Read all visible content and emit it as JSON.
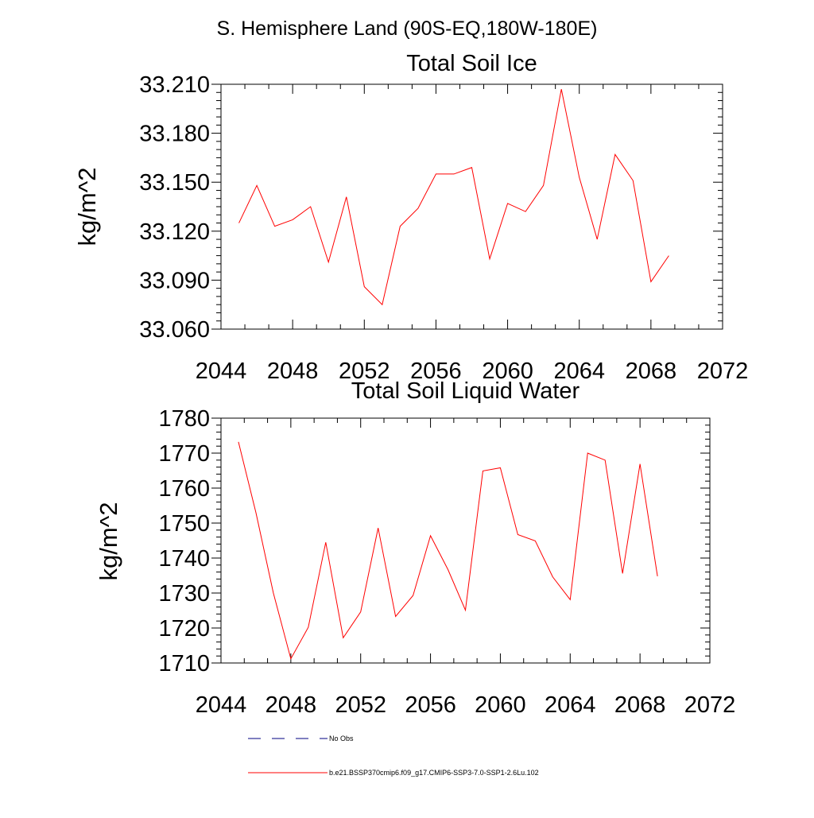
{
  "main_title": "S. Hemisphere Land (90S-EQ,180W-180E)",
  "colors": {
    "series": "#ff0000",
    "axes": "#000000",
    "obs": "#000080"
  },
  "legend": [
    {
      "label": "No Obs",
      "style": "dashed",
      "color": "#000080"
    },
    {
      "label": "b.e21.BSSP370cmip6.f09_g17.CMIP6-SSP3-7.0-SSP1-2.6Lu.102",
      "style": "solid",
      "color": "#ff0000"
    }
  ],
  "chart_data": [
    {
      "type": "line",
      "title": "Total Soil Ice",
      "xlabel": "",
      "ylabel": "kg/m^2",
      "xlim": [
        2044,
        2072
      ],
      "ylim": [
        33.06,
        33.21
      ],
      "xticks": [
        2044,
        2048,
        2052,
        2056,
        2060,
        2064,
        2068,
        2072
      ],
      "xtick_labels": [
        "2044",
        "2048",
        "2052",
        "2056",
        "2060",
        "2064",
        "2068",
        "2072"
      ],
      "yticks": [
        33.06,
        33.09,
        33.12,
        33.15,
        33.18,
        33.21
      ],
      "ytick_labels": [
        "33.060",
        "33.090",
        "33.120",
        "33.150",
        "33.180",
        "33.210"
      ],
      "grid": false,
      "series": [
        {
          "color": "#ff0000",
          "x": [
            2045,
            2046,
            2047,
            2048,
            2049,
            2050,
            2051,
            2052,
            2053,
            2054,
            2055,
            2056,
            2057,
            2058,
            2059,
            2060,
            2061,
            2062,
            2063,
            2064,
            2065,
            2066,
            2067,
            2068,
            2069
          ],
          "values": [
            33.125,
            33.148,
            33.123,
            33.127,
            33.135,
            33.101,
            33.141,
            33.086,
            33.075,
            33.123,
            33.134,
            33.155,
            33.155,
            33.159,
            33.103,
            33.137,
            33.132,
            33.148,
            33.207,
            33.153,
            33.115,
            33.167,
            33.151,
            33.089,
            33.105
          ]
        }
      ]
    },
    {
      "type": "line",
      "title": "Total Soil Liquid Water",
      "xlabel": "",
      "ylabel": "kg/m^2",
      "xlim": [
        2044,
        2072
      ],
      "ylim": [
        1710,
        1780
      ],
      "xticks": [
        2044,
        2048,
        2052,
        2056,
        2060,
        2064,
        2068,
        2072
      ],
      "xtick_labels": [
        "2044",
        "2048",
        "2052",
        "2056",
        "2060",
        "2064",
        "2068",
        "2072"
      ],
      "yticks": [
        1710,
        1720,
        1730,
        1740,
        1750,
        1760,
        1770,
        1780
      ],
      "ytick_labels": [
        "1710",
        "1720",
        "1730",
        "1740",
        "1750",
        "1760",
        "1770",
        "1780"
      ],
      "grid": false,
      "series": [
        {
          "color": "#ff0000",
          "x": [
            2045,
            2046,
            2047,
            2048,
            2049,
            2050,
            2051,
            2052,
            2053,
            2054,
            2055,
            2056,
            2057,
            2058,
            2059,
            2060,
            2061,
            2062,
            2063,
            2064,
            2065,
            2066,
            2067,
            2068,
            2069
          ],
          "values": [
            1773.2,
            1753.0,
            1730.0,
            1711.2,
            1720.2,
            1744.5,
            1717.2,
            1724.6,
            1748.6,
            1723.3,
            1729.3,
            1746.4,
            1736.7,
            1725.1,
            1764.9,
            1765.8,
            1746.7,
            1744.9,
            1734.6,
            1728.1,
            1770.0,
            1768.0,
            1735.6,
            1766.9,
            1734.8
          ]
        }
      ]
    }
  ]
}
